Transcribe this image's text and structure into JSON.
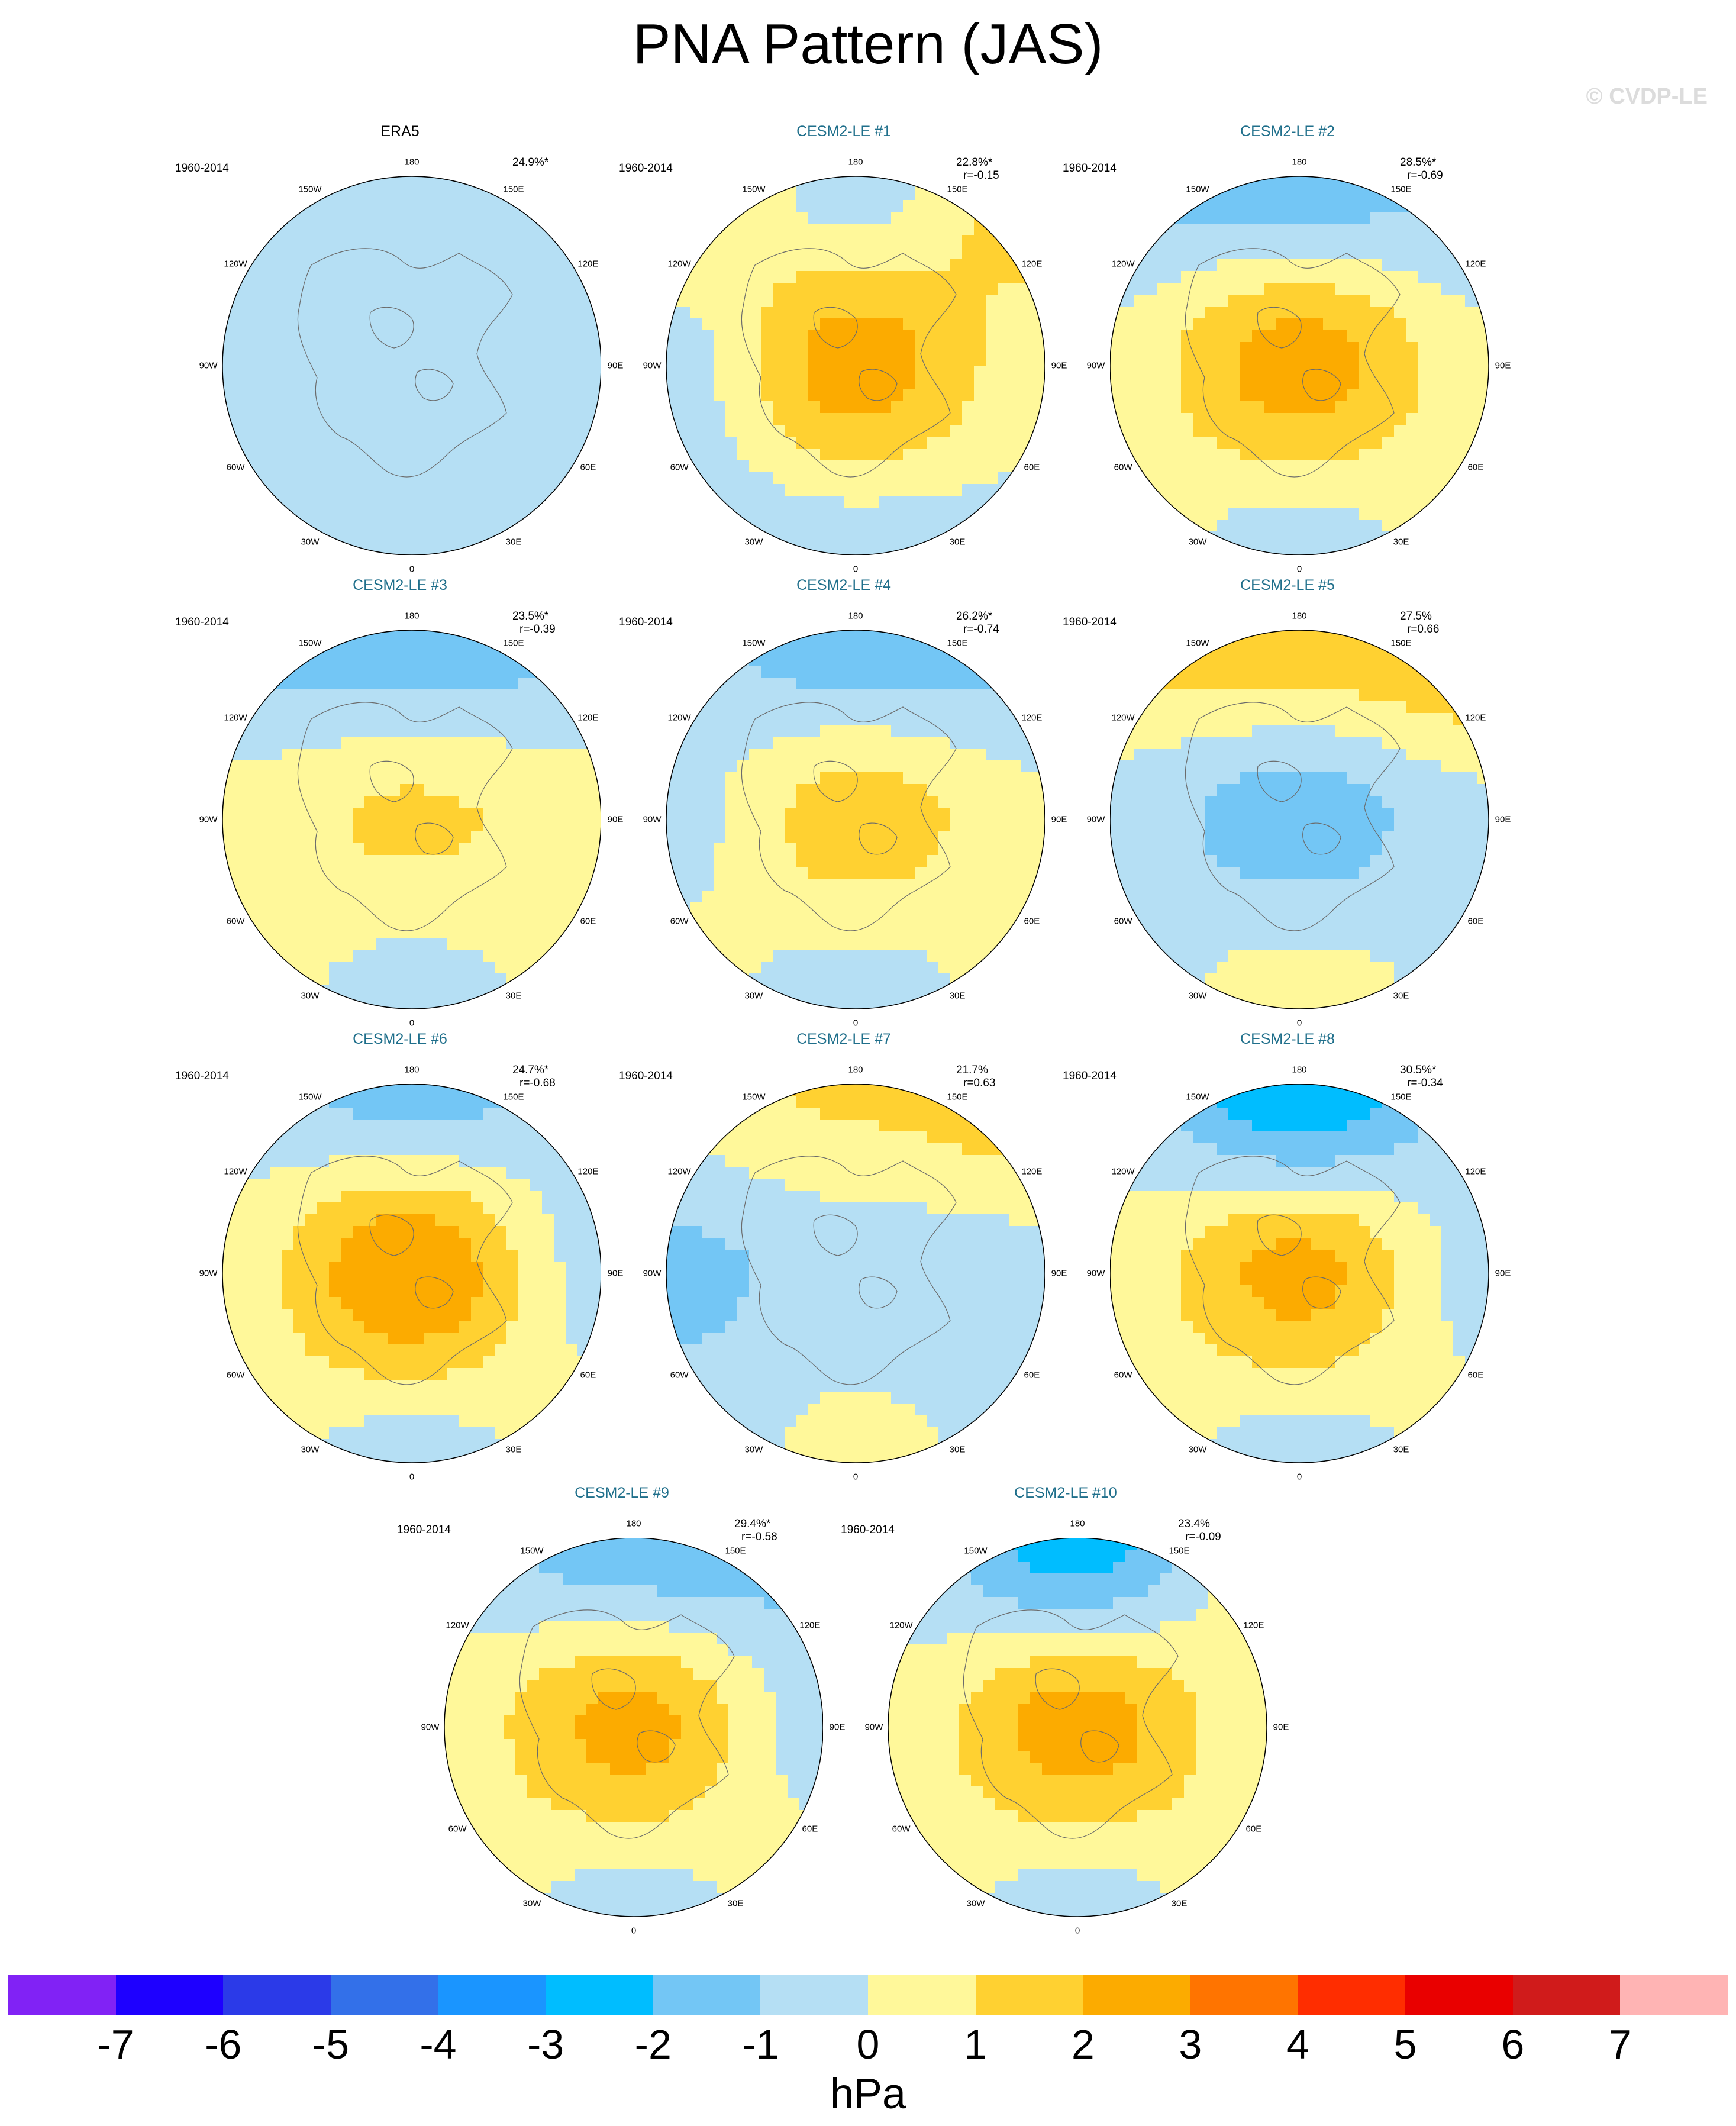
{
  "title": "PNA Pattern (JAS)",
  "watermark": "© CVDP-LE",
  "period": "1960-2014",
  "lon_labels": [
    "180",
    "150E",
    "120E",
    "90E",
    "60E",
    "30E",
    "0",
    "30W",
    "60W",
    "90W",
    "120W",
    "150W"
  ],
  "panels": [
    {
      "title": "ERA5",
      "pct": "24.9%*",
      "r": "",
      "obs": true,
      "sign": -1,
      "field": [
        [
          0.2,
          0.0,
          0.9
        ],
        [
          0.8,
          0.3,
          0.6
        ],
        [
          0.4,
          0.7,
          0.4
        ]
      ]
    },
    {
      "title": "CESM2-LE #1",
      "pct": "22.8%*",
      "r": "r=-0.15",
      "obs": false,
      "sign": 1,
      "field": [
        [
          1.6,
          -0.6,
          1.8
        ],
        [
          -0.5,
          2.6,
          0.4
        ],
        [
          -0.8,
          -0.6,
          -0.4
        ]
      ]
    },
    {
      "title": "CESM2-LE #2",
      "pct": "28.5%*",
      "r": "r=-0.69",
      "obs": false,
      "sign": 1,
      "field": [
        [
          -1.2,
          -1.6,
          -1.0
        ],
        [
          0.4,
          2.6,
          0.3
        ],
        [
          0.5,
          -0.6,
          0.6
        ]
      ]
    },
    {
      "title": "CESM2-LE #3",
      "pct": "23.5%*",
      "r": "r=-0.39",
      "obs": false,
      "sign": 1,
      "field": [
        [
          -1.4,
          -1.8,
          -1.2
        ],
        [
          0.4,
          1.2,
          0.5
        ],
        [
          0.5,
          -0.5,
          0.4
        ]
      ]
    },
    {
      "title": "CESM2-LE #4",
      "pct": "26.2%*",
      "r": "r=-0.74",
      "obs": false,
      "sign": 1,
      "field": [
        [
          -0.6,
          -1.8,
          -1.4
        ],
        [
          -0.4,
          1.6,
          0.3
        ],
        [
          0.4,
          -0.6,
          0.5
        ]
      ]
    },
    {
      "title": "CESM2-LE #5",
      "pct": "27.5%",
      "r": "r=0.66",
      "obs": false,
      "sign": 1,
      "field": [
        [
          1.4,
          1.8,
          2.2
        ],
        [
          -0.5,
          -1.6,
          -0.3
        ],
        [
          -0.4,
          0.6,
          -0.4
        ]
      ]
    },
    {
      "title": "CESM2-LE #6",
      "pct": "24.7%*",
      "r": "r=-0.68",
      "obs": false,
      "sign": 1,
      "field": [
        [
          -0.5,
          -1.5,
          -0.6
        ],
        [
          0.4,
          3.0,
          -0.4
        ],
        [
          0.4,
          -0.5,
          0.5
        ]
      ]
    },
    {
      "title": "CESM2-LE #7",
      "pct": "21.7%",
      "r": "r=0.63",
      "obs": false,
      "sign": 1,
      "field": [
        [
          0.5,
          1.2,
          1.8
        ],
        [
          -1.3,
          -0.6,
          -0.4
        ],
        [
          -0.5,
          0.3,
          -0.4
        ]
      ]
    },
    {
      "title": "CESM2-LE #8",
      "pct": "30.5%*",
      "r": "r=-0.34",
      "obs": false,
      "sign": 1,
      "field": [
        [
          -0.5,
          -3.0,
          -0.5
        ],
        [
          0.4,
          2.4,
          -0.4
        ],
        [
          0.5,
          -0.5,
          0.4
        ]
      ]
    },
    {
      "title": "CESM2-LE #9",
      "pct": "29.4%*",
      "r": "r=-0.58",
      "obs": false,
      "sign": 1,
      "field": [
        [
          -0.6,
          -1.8,
          -1.4
        ],
        [
          0.5,
          2.4,
          -0.4
        ],
        [
          0.5,
          -0.5,
          0.5
        ]
      ]
    },
    {
      "title": "CESM2-LE #10",
      "pct": "23.4%",
      "r": "r=-0.09",
      "obs": false,
      "sign": 1,
      "field": [
        [
          -0.5,
          -2.6,
          0.4
        ],
        [
          0.3,
          2.6,
          0.4
        ],
        [
          0.5,
          -0.5,
          0.5
        ]
      ]
    }
  ],
  "colorbar": {
    "colors": [
      "#8122f5",
      "#1e00ff",
      "#2b3ae8",
      "#3370e9",
      "#1a95ff",
      "#00bdff",
      "#73c6f5",
      "#b5dff4",
      "#fff89a",
      "#ffd131",
      "#fcab00",
      "#ff7400",
      "#ff2d00",
      "#e90000",
      "#d01b1b",
      "#ffb4b4"
    ],
    "labels": [
      "-7",
      "-6",
      "-5",
      "-4",
      "-3",
      "-2",
      "-1",
      "0",
      "1",
      "2",
      "3",
      "4",
      "5",
      "6",
      "7"
    ],
    "units": "hPa"
  }
}
